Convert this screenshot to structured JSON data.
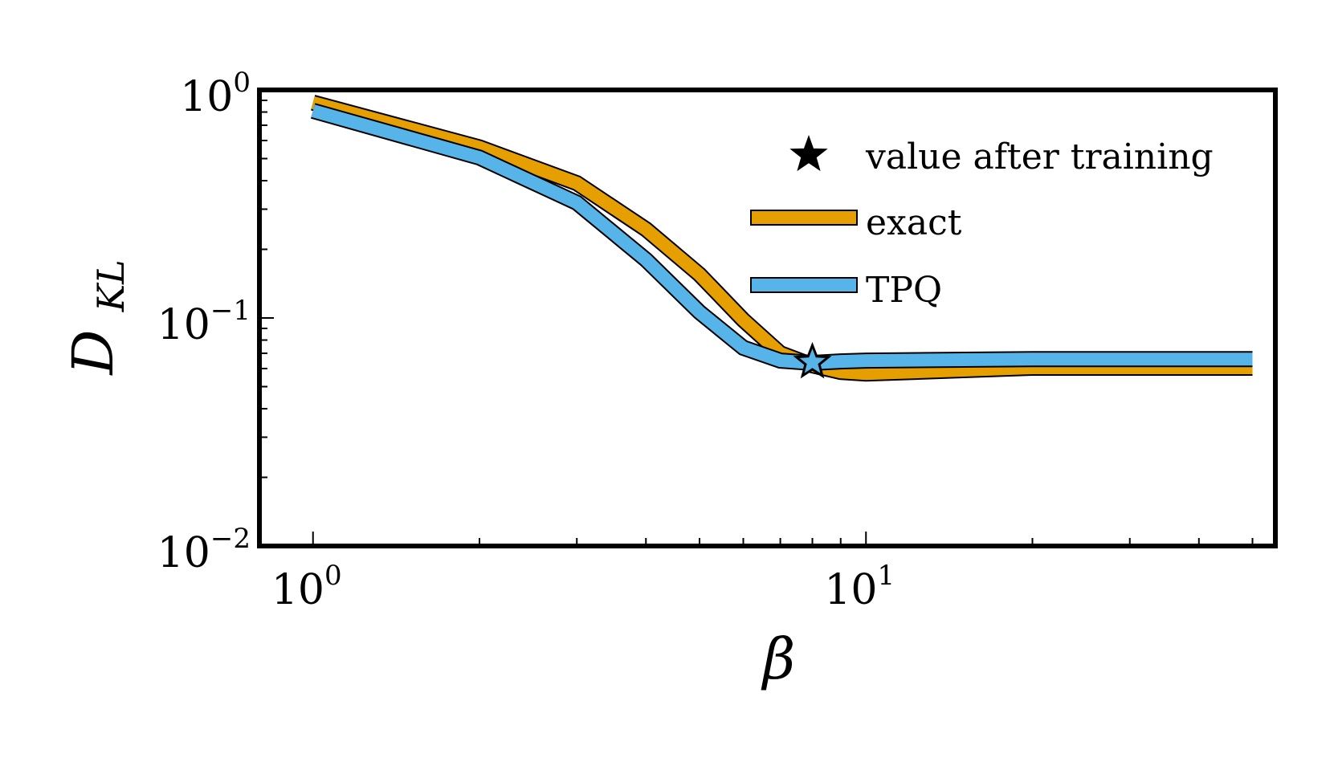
{
  "chart_data": {
    "type": "line",
    "title": "",
    "xlabel": "β",
    "ylabel": "D",
    "ylabel_sub": "KL",
    "xscale": "log",
    "yscale": "log",
    "xlim": [
      0.8,
      55
    ],
    "ylim": [
      0.01,
      1.0
    ],
    "x_tick_labels": [
      {
        "value": 1,
        "base": "10",
        "exp": "0"
      },
      {
        "value": 10,
        "base": "10",
        "exp": "1"
      }
    ],
    "y_tick_labels": [
      {
        "value": 1.0,
        "base": "10",
        "exp": "0"
      },
      {
        "value": 0.1,
        "base": "10",
        "exp": "−1"
      },
      {
        "value": 0.01,
        "base": "10",
        "exp": "−2"
      }
    ],
    "series": [
      {
        "name": "exact",
        "color": "#E69F00",
        "x": [
          1,
          2,
          3,
          4,
          5,
          6,
          7,
          8,
          9,
          10,
          20,
          50
        ],
        "y": [
          0.88,
          0.56,
          0.39,
          0.245,
          0.155,
          0.098,
          0.07,
          0.062,
          0.058,
          0.057,
          0.0605,
          0.0605
        ]
      },
      {
        "name": "TPQ",
        "color": "#56B4E9",
        "x": [
          1,
          2,
          3,
          4,
          5,
          6,
          7,
          8,
          9,
          10,
          20,
          50
        ],
        "y": [
          0.81,
          0.505,
          0.32,
          0.18,
          0.106,
          0.074,
          0.065,
          0.0635,
          0.0645,
          0.065,
          0.066,
          0.066
        ]
      }
    ],
    "marker": {
      "name": "value after training",
      "x": 8,
      "y": 0.064,
      "color": "#56B4E9"
    },
    "legend": {
      "placement": "top-right",
      "entries": [
        "value after training",
        "exact",
        "TPQ"
      ]
    }
  }
}
